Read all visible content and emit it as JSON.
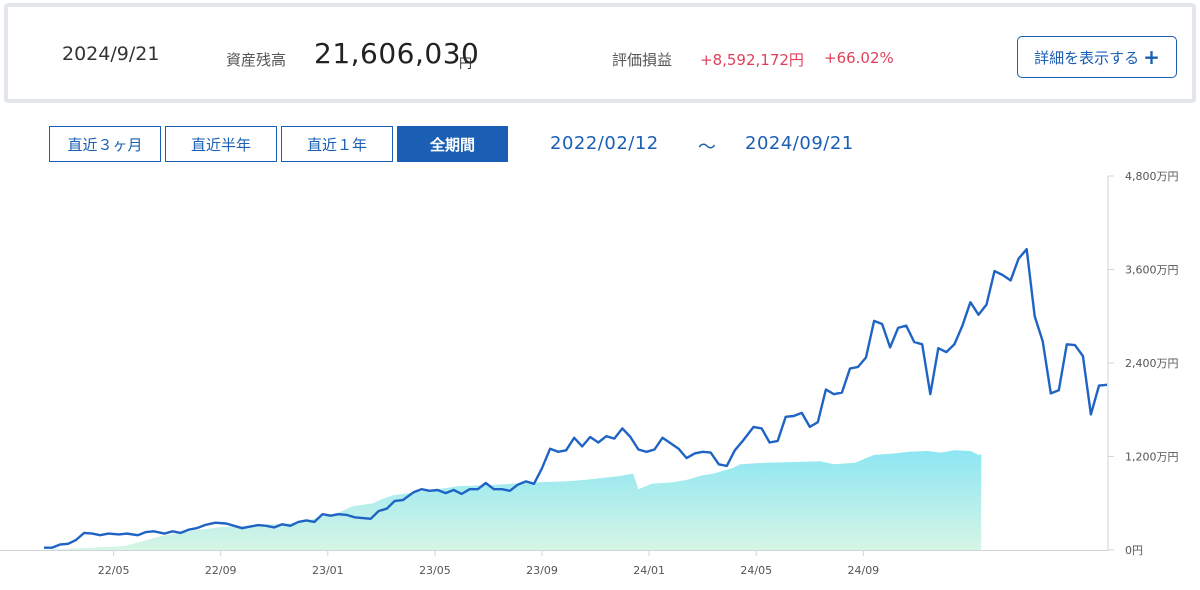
{
  "summary": {
    "date": "2024/9/21",
    "balance_label": "資産残高",
    "balance": "21,606,030",
    "balance_unit": "円",
    "pl_label": "評価損益",
    "pl_amount": "+8,592,172円",
    "pl_pct": "+66.02%",
    "detail_button": "詳細を表示する",
    "detail_icon": "plus-icon"
  },
  "ranges": {
    "buttons": [
      "直近３ヶ月",
      "直近半年",
      "直近１年",
      "全期間"
    ],
    "active": "全期間",
    "start": "2022/02/12",
    "separator": "～",
    "end": "2024/09/21"
  },
  "colors": {
    "accent": "#1a5fb4",
    "line": "#1f64c4",
    "area_top": "#8de6f3",
    "area_bottom": "#d6f5e5",
    "positive": "#e0415a"
  },
  "chart_data": {
    "type": "area",
    "x_ticks": [
      "22/05",
      "22/09",
      "23/01",
      "23/05",
      "23/09",
      "24/01",
      "24/05",
      "24/09"
    ],
    "y_ticks": [
      "0円",
      "1,200万円",
      "2,400万円",
      "3,600万円",
      "4,800万円"
    ],
    "ylim": [
      0,
      4800
    ],
    "y_unit": "万円",
    "grid": false,
    "x_range_months": [
      0,
      31.3
    ],
    "series": [
      {
        "kind": "area",
        "points": [
          [
            0,
            0
          ],
          [
            3,
            50
          ],
          [
            4.4,
            180
          ],
          [
            5.5,
            245
          ],
          [
            6.5,
            290
          ],
          [
            7.5,
            310
          ],
          [
            8.5,
            330
          ],
          [
            9.5,
            350
          ],
          [
            10.3,
            420
          ],
          [
            11,
            480
          ],
          [
            11.5,
            560
          ],
          [
            12.3,
            600
          ],
          [
            12.6,
            650
          ],
          [
            13,
            700
          ],
          [
            14,
            750
          ],
          [
            14.7,
            780
          ],
          [
            15.5,
            820
          ],
          [
            16.5,
            830
          ],
          [
            17.5,
            850
          ],
          [
            18.5,
            870
          ],
          [
            19.5,
            880
          ],
          [
            20.2,
            900
          ],
          [
            21,
            930
          ],
          [
            21.5,
            950
          ],
          [
            22,
            980
          ],
          [
            22.2,
            780
          ],
          [
            22.7,
            850
          ],
          [
            23.5,
            870
          ],
          [
            24,
            900
          ],
          [
            24.6,
            960
          ],
          [
            25,
            980
          ],
          [
            25.7,
            1050
          ],
          [
            26,
            1100
          ],
          [
            27,
            1120
          ],
          [
            28,
            1130
          ],
          [
            29,
            1140
          ],
          [
            29.5,
            1100
          ],
          [
            30.3,
            1120
          ],
          [
            31,
            1220
          ],
          [
            31.8,
            1240
          ],
          [
            32.3,
            1260
          ],
          [
            33,
            1270
          ],
          [
            33.5,
            1250
          ],
          [
            34,
            1280
          ],
          [
            34.6,
            1270
          ],
          [
            34.9,
            1220
          ],
          [
            35,
            1230
          ]
        ]
      },
      {
        "kind": "line",
        "points": [
          [
            0,
            30
          ],
          [
            0.3,
            30
          ],
          [
            0.6,
            70
          ],
          [
            0.9,
            80
          ],
          [
            1.2,
            130
          ],
          [
            1.5,
            220
          ],
          [
            1.8,
            210
          ],
          [
            2.1,
            190
          ],
          [
            2.4,
            210
          ],
          [
            2.8,
            200
          ],
          [
            3.1,
            210
          ],
          [
            3.5,
            190
          ],
          [
            3.8,
            230
          ],
          [
            4.1,
            240
          ],
          [
            4.5,
            210
          ],
          [
            4.8,
            240
          ],
          [
            5.1,
            220
          ],
          [
            5.4,
            260
          ],
          [
            5.7,
            280
          ],
          [
            6,
            320
          ],
          [
            6.4,
            350
          ],
          [
            6.8,
            340
          ],
          [
            7.1,
            310
          ],
          [
            7.4,
            280
          ],
          [
            7.7,
            300
          ],
          [
            8,
            320
          ],
          [
            8.3,
            310
          ],
          [
            8.6,
            290
          ],
          [
            8.9,
            330
          ],
          [
            9.2,
            310
          ],
          [
            9.5,
            360
          ],
          [
            9.8,
            380
          ],
          [
            10.1,
            360
          ],
          [
            10.4,
            460
          ],
          [
            10.7,
            440
          ],
          [
            11,
            460
          ],
          [
            11.3,
            450
          ],
          [
            11.6,
            420
          ],
          [
            11.9,
            410
          ],
          [
            12.2,
            400
          ],
          [
            12.5,
            500
          ],
          [
            12.8,
            530
          ],
          [
            13.1,
            630
          ],
          [
            13.4,
            640
          ],
          [
            13.8,
            740
          ],
          [
            14.1,
            780
          ],
          [
            14.4,
            760
          ],
          [
            14.7,
            770
          ],
          [
            15,
            730
          ],
          [
            15.3,
            770
          ],
          [
            15.6,
            720
          ],
          [
            15.9,
            780
          ],
          [
            16.2,
            780
          ],
          [
            16.5,
            860
          ],
          [
            16.8,
            780
          ],
          [
            17.1,
            780
          ],
          [
            17.4,
            760
          ],
          [
            17.7,
            840
          ],
          [
            18,
            880
          ],
          [
            18.3,
            850
          ],
          [
            18.6,
            1050
          ],
          [
            18.9,
            1300
          ],
          [
            19.2,
            1260
          ],
          [
            19.5,
            1280
          ],
          [
            19.8,
            1440
          ],
          [
            20.1,
            1330
          ],
          [
            20.4,
            1450
          ],
          [
            20.7,
            1380
          ],
          [
            21,
            1460
          ],
          [
            21.3,
            1430
          ],
          [
            21.6,
            1560
          ],
          [
            21.9,
            1450
          ],
          [
            22.2,
            1290
          ],
          [
            22.5,
            1260
          ],
          [
            22.8,
            1290
          ],
          [
            23.1,
            1440
          ],
          [
            23.4,
            1370
          ],
          [
            23.7,
            1300
          ],
          [
            24,
            1180
          ],
          [
            24.3,
            1240
          ],
          [
            24.6,
            1260
          ],
          [
            24.9,
            1250
          ],
          [
            25.2,
            1100
          ],
          [
            25.5,
            1080
          ],
          [
            25.8,
            1280
          ],
          [
            26.1,
            1400
          ],
          [
            26.5,
            1580
          ],
          [
            26.8,
            1560
          ],
          [
            27.1,
            1380
          ],
          [
            27.4,
            1400
          ],
          [
            27.7,
            1710
          ],
          [
            28,
            1720
          ],
          [
            28.3,
            1760
          ],
          [
            28.6,
            1580
          ],
          [
            28.9,
            1640
          ],
          [
            29.2,
            2060
          ],
          [
            29.5,
            2000
          ],
          [
            29.8,
            2020
          ],
          [
            30.1,
            2330
          ],
          [
            30.4,
            2350
          ],
          [
            30.7,
            2470
          ],
          [
            31,
            2940
          ],
          [
            31.3,
            2900
          ],
          [
            31.6,
            2600
          ],
          [
            31.9,
            2850
          ],
          [
            32.2,
            2880
          ],
          [
            32.5,
            2670
          ],
          [
            32.8,
            2640
          ],
          [
            33.1,
            2000
          ],
          [
            33.4,
            2590
          ],
          [
            33.7,
            2540
          ],
          [
            34,
            2640
          ],
          [
            34.3,
            2880
          ],
          [
            34.6,
            3180
          ],
          [
            34.9,
            3020
          ],
          [
            35.2,
            3150
          ],
          [
            35.5,
            3580
          ],
          [
            35.8,
            3530
          ],
          [
            36.1,
            3460
          ],
          [
            36.4,
            3740
          ],
          [
            36.7,
            3860
          ],
          [
            37,
            3000
          ],
          [
            37.3,
            2680
          ],
          [
            37.6,
            2010
          ],
          [
            37.9,
            2050
          ],
          [
            38.2,
            2640
          ],
          [
            38.5,
            2630
          ],
          [
            38.8,
            2490
          ],
          [
            39.1,
            1740
          ],
          [
            39.4,
            2110
          ],
          [
            39.7,
            2120
          ]
        ]
      }
    ]
  }
}
